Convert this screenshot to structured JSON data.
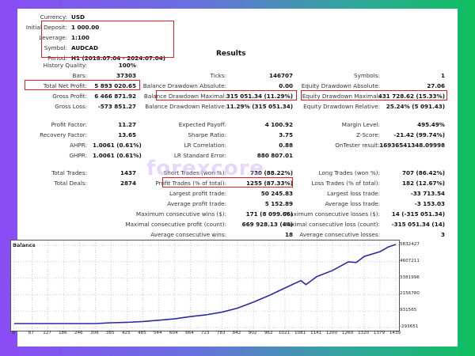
{
  "header": {
    "currency_label": "Currency:",
    "currency": "USD",
    "initial_deposit_label": "Initial Deposit:",
    "initial_deposit": "1 000.00",
    "leverage_label": "Leverage:",
    "leverage": "1:100",
    "symbol_label": "Symbol:",
    "symbol": "AUDCAD",
    "period_label": "Period:",
    "period": "H1 (2018.07.04 - 2024.07.04)",
    "results_title": "Results"
  },
  "col1": {
    "history_quality_label": "History Quality:",
    "history_quality": "100%",
    "bars_label": "Bars:",
    "bars": "37303",
    "total_net_profit_label": "Total Net Profit:",
    "total_net_profit": "5 893 020.65",
    "gross_profit_label": "Gross Profit:",
    "gross_profit": "6 466 871.92",
    "gross_loss_label": "Gross Loss:",
    "gross_loss": "-573 851.27",
    "profit_factor_label": "Profit Factor:",
    "profit_factor": "11.27",
    "recovery_factor_label": "Recovery Factor:",
    "recovery_factor": "13.65",
    "ahpr_label": "AHPR:",
    "ahpr": "1.0061 (0.61%)",
    "ghpr_label": "GHPR:",
    "ghpr": "1.0061 (0.61%)",
    "total_trades_label": "Total Trades:",
    "total_trades": "1437",
    "total_deals_label": "Total Deals:",
    "total_deals": "2874"
  },
  "col2": {
    "ticks_label": "Ticks:",
    "ticks": "146707",
    "bal_dd_abs_label": "Balance Drawdown Absolute:",
    "bal_dd_abs": "0.00",
    "bal_dd_max_label": "Balance Drawdown Maximal:",
    "bal_dd_max": "315 051.34 (11.29%)",
    "bal_dd_rel_label": "Balance Drawdown Relative:",
    "bal_dd_rel": "11.29% (315 051.34)",
    "expected_payoff_label": "Expected Payoff:",
    "expected_payoff": "4 100.92",
    "sharpe_label": "Sharpe Ratio:",
    "sharpe": "3.75",
    "lr_corr_label": "LR Correlation:",
    "lr_corr": "0.88",
    "lr_err_label": "LR Standard Error:",
    "lr_err": "880 807.01",
    "short_trades_label": "Short Trades (won %):",
    "short_trades": "730 (88.22%)",
    "profit_trades_label": "Profit Trades (% of total):",
    "profit_trades": "1255 (87.33%)",
    "largest_profit_label": "Largest profit trade:",
    "largest_profit": "50 245.83",
    "avg_profit_label": "Average profit trade:",
    "avg_profit": "5 152.89",
    "max_cons_wins_label": "Maximum consecutive wins ($):",
    "max_cons_wins": "171 (8 099.66)",
    "max_cons_profit_label": "Maximal consecutive profit (count):",
    "max_cons_profit": "669 928.13 (44)",
    "avg_cons_wins_label": "Average consecutive wins:",
    "avg_cons_wins": "18"
  },
  "col3": {
    "symbols_label": "Symbols:",
    "symbols": "1",
    "eq_dd_abs_label": "Equity Drawdown Absolute:",
    "eq_dd_abs": "27.06",
    "eq_dd_max_label": "Equity Drawdown Maximal:",
    "eq_dd_max": "431 728.62 (15.33%)",
    "eq_dd_rel_label": "Equity Drawdown Relative:",
    "eq_dd_rel": "25.24% (5 091.43)",
    "margin_level_label": "Margin Level:",
    "margin_level": "495.49%",
    "zscore_label": "Z-Score:",
    "zscore": "-21.42 (99.74%)",
    "ontester_label": "OnTester result:",
    "ontester": "16936541348.09998",
    "long_trades_label": "Long Trades (won %):",
    "long_trades": "707 (86.42%)",
    "loss_trades_label": "Loss Trades (% of total):",
    "loss_trades": "182 (12.67%)",
    "largest_loss_label": "Largest loss trade:",
    "largest_loss": "-33 713.54",
    "avg_loss_label": "Average loss trade:",
    "avg_loss": "-3 153.03",
    "max_cons_losses_label": "Maximum consecutive losses ($):",
    "max_cons_losses": "14 (-315 051.34)",
    "max_cons_loss_label": "Maximal consecutive loss (count):",
    "max_cons_loss": "-315 051.34 (14)",
    "avg_cons_losses_label": "Average consecutive losses:",
    "avg_cons_losses": "3"
  },
  "watermark": "forexcore",
  "colors": {
    "highlight": "#dd2222",
    "line": "#2b2ba0",
    "bg_left": "#8a4cf5",
    "bg_right": "#0fbf5f"
  },
  "chart_data": {
    "type": "line",
    "title": "Balance",
    "x_ticks": [
      "0",
      "67",
      "127",
      "186",
      "246",
      "306",
      "365",
      "425",
      "485",
      "544",
      "604",
      "664",
      "723",
      "783",
      "842",
      "902",
      "962",
      "1021",
      "1081",
      "1141",
      "1200",
      "1260",
      "1320",
      "1379",
      "1439"
    ],
    "y_ticks": [
      "5832427",
      "4607211",
      "3381996",
      "2156780",
      "931565",
      "-293651"
    ],
    "ylim": [
      -293651,
      5832427
    ],
    "grid": true,
    "series": [
      {
        "name": "Balance",
        "x": [
          0,
          67,
          127,
          186,
          246,
          306,
          365,
          425,
          485,
          544,
          604,
          664,
          723,
          783,
          842,
          902,
          962,
          1021,
          1081,
          1100,
          1141,
          1200,
          1260,
          1290,
          1320,
          1379,
          1410,
          1439
        ],
        "values": [
          1000,
          1000,
          1000,
          1000,
          1000,
          1000,
          60000,
          90000,
          150000,
          250000,
          350000,
          520000,
          650000,
          850000,
          1150000,
          1600000,
          2100000,
          2650000,
          3200000,
          2900000,
          3500000,
          3950000,
          4600000,
          4550000,
          5000000,
          5350000,
          5700000,
          5893020
        ]
      }
    ]
  }
}
